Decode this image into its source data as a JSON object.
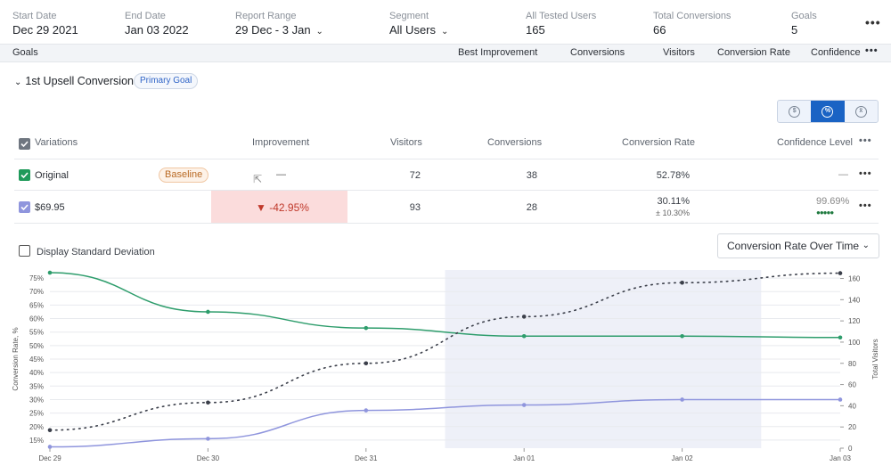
{
  "summary": {
    "start_date": {
      "label": "Start Date",
      "value": "Dec 29 2021"
    },
    "end_date": {
      "label": "End Date",
      "value": "Jan 03 2022"
    },
    "report_range": {
      "label": "Report Range",
      "value": "29 Dec - 3 Jan"
    },
    "segment": {
      "label": "Segment",
      "value": "All Users"
    },
    "all_tested_users": {
      "label": "All Tested Users",
      "value": "165"
    },
    "total_conversions": {
      "label": "Total Conversions",
      "value": "66"
    },
    "goals": {
      "label": "Goals",
      "value": "5"
    },
    "more": "•••"
  },
  "goals_bar": {
    "title": "Goals",
    "columns": [
      "Best Improvement",
      "Conversions",
      "Visitors",
      "Conversion Rate",
      "Confidence"
    ],
    "more": "•••"
  },
  "goal": {
    "caret": "⌄",
    "name": "1st Upsell Conversion",
    "badge": "Primary Goal"
  },
  "toggle": {
    "icons": [
      "dollar-icon",
      "percent-icon",
      "x-bar-icon"
    ],
    "glyphs": [
      "$",
      "%",
      "x̄"
    ],
    "active_index": 1
  },
  "table": {
    "headers": {
      "variations": "Variations",
      "improvement": "Improvement",
      "visitors": "Visitors",
      "conversions": "Conversions",
      "conversion_rate": "Conversion Rate",
      "confidence": "Confidence Level",
      "more": "•••"
    },
    "rows": [
      {
        "name": "Original",
        "badge": "Baseline",
        "improvement": "—",
        "visitors": "72",
        "conversions": "38",
        "rate": "52.78%",
        "rate_sub": "",
        "confidence": "—",
        "check_color": "#1f9a5a",
        "more": "•••"
      },
      {
        "name": "$69.95",
        "badge": "",
        "improvement": "▼ -42.95%",
        "visitors": "93",
        "conversions": "28",
        "rate": "30.11%",
        "rate_sub": "± 10.30%",
        "confidence": "99.69%",
        "check_color": "#8f95dd",
        "confidence_dots": "●●●●●",
        "more": "•••"
      }
    ]
  },
  "chart_controls": {
    "std_dev_label": "Display Standard Deviation",
    "view_select": "Conversion Rate Over Time",
    "view_chevron": "⌄"
  },
  "chart_data": {
    "type": "line",
    "x": [
      "Dec 29",
      "Dec 30",
      "Dec 31",
      "Jan 01",
      "Jan 02",
      "Jan 03"
    ],
    "ylabel": "Conversion Rate, %",
    "y2label": "Total Visitors",
    "ylim": [
      12,
      78
    ],
    "y2lim": [
      0,
      168
    ],
    "yticks": [
      15,
      20,
      25,
      30,
      35,
      40,
      45,
      50,
      55,
      60,
      65,
      70,
      75
    ],
    "y2ticks": [
      0,
      20,
      40,
      60,
      80,
      100,
      120,
      140,
      160
    ],
    "highlight_range": [
      2.5,
      4.5
    ],
    "series": [
      {
        "values": [
          77,
          62.5,
          56.5,
          53.5,
          53.5,
          53
        ],
        "color": "#2e9d6c",
        "axis": "left",
        "style": "solid"
      },
      {
        "values": [
          12.5,
          15.5,
          26,
          28,
          30,
          30
        ],
        "color": "#8f95dd",
        "axis": "left",
        "style": "solid"
      },
      {
        "values": [
          17,
          43,
          80,
          124,
          156,
          165
        ],
        "color": "#3b3f4a",
        "axis": "right",
        "style": "dotted"
      }
    ],
    "grid": true
  }
}
